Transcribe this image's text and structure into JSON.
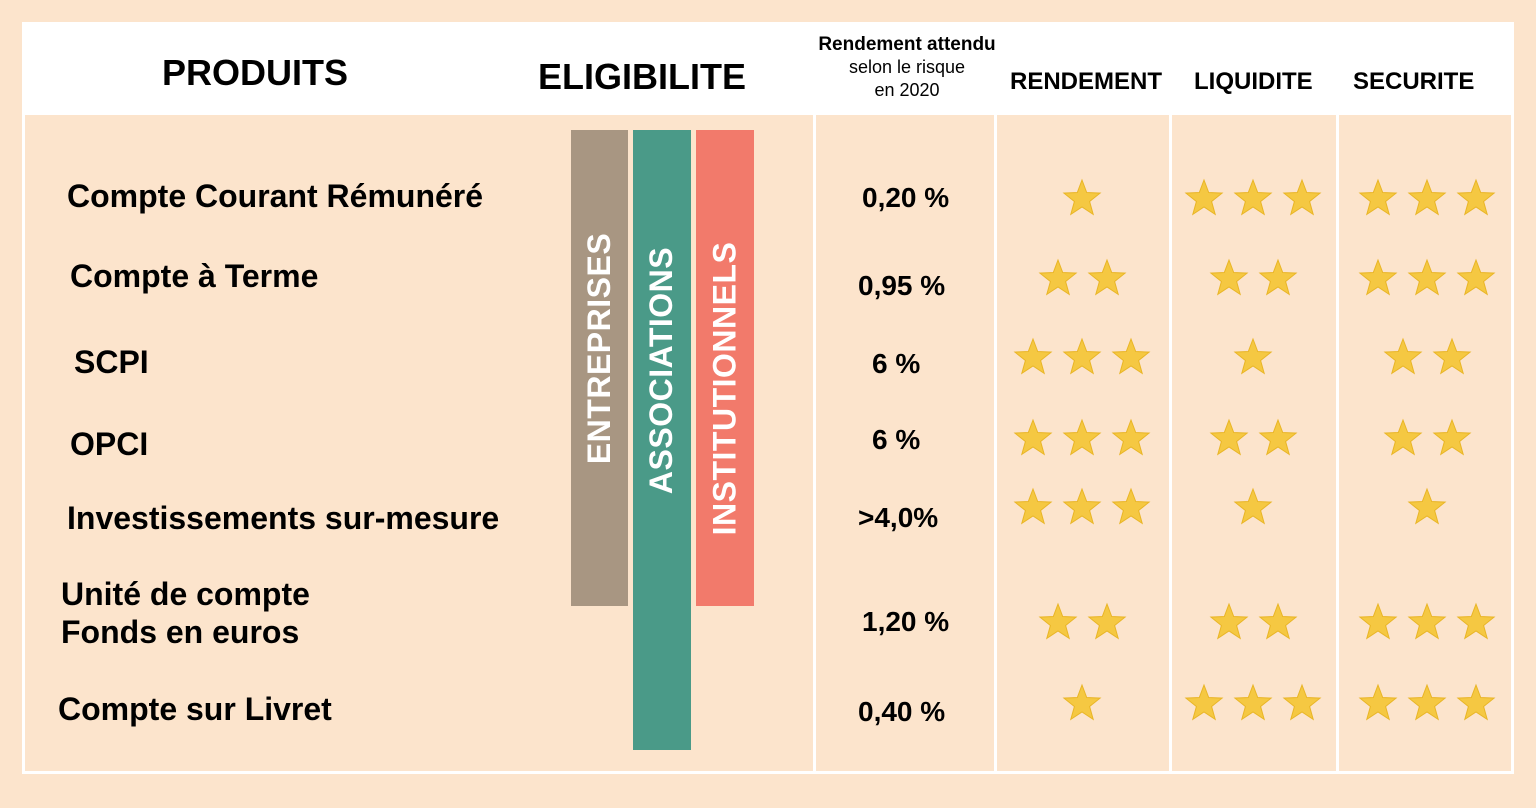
{
  "header": {
    "produits": "PRODUITS",
    "eligibilite": "ELIGIBILITE",
    "rendement_attendu_line1": "Rendement attendu",
    "rendement_attendu_line2": "selon le risque",
    "rendement_attendu_line3": "en 2020",
    "rendement": "RENDEMENT",
    "liquidite": "LIQUIDITE",
    "securite": "SECURITE"
  },
  "eligibility": {
    "entreprises": "ENTREPRISES",
    "associations": "ASSOCIATIONS",
    "institutionnels": "INSTITUTIONNELS"
  },
  "colors": {
    "background": "#fce4cc",
    "entreprises_bar": "#a89682",
    "associations_bar": "#4a9a88",
    "institutionnels_bar": "#f27a6b",
    "star": "#f5c842"
  },
  "products": [
    {
      "name": "Compte Courant Rémunéré",
      "rate": "0,20 %",
      "rendement": 1,
      "liquidite": 3,
      "securite": 3
    },
    {
      "name": "Compte à Terme",
      "rate": "0,95 %",
      "rendement": 2,
      "liquidite": 2,
      "securite": 3
    },
    {
      "name": "SCPI",
      "rate": "6 %",
      "rendement": 3,
      "liquidite": 1,
      "securite": 2
    },
    {
      "name": "OPCI",
      "rate": "6 %",
      "rendement": 3,
      "liquidite": 2,
      "securite": 2
    },
    {
      "name": "Investissements sur-mesure",
      "rate": ">4,0%",
      "rendement": 3,
      "liquidite": 1,
      "securite": 1
    },
    {
      "name_line1": "Unité de compte",
      "name_line2": "Fonds en euros",
      "rate": "1,20 %",
      "rendement": 2,
      "liquidite": 2,
      "securite": 3
    },
    {
      "name": "Compte sur Livret",
      "rate": "0,40 %",
      "rendement": 1,
      "liquidite": 3,
      "securite": 3
    }
  ]
}
